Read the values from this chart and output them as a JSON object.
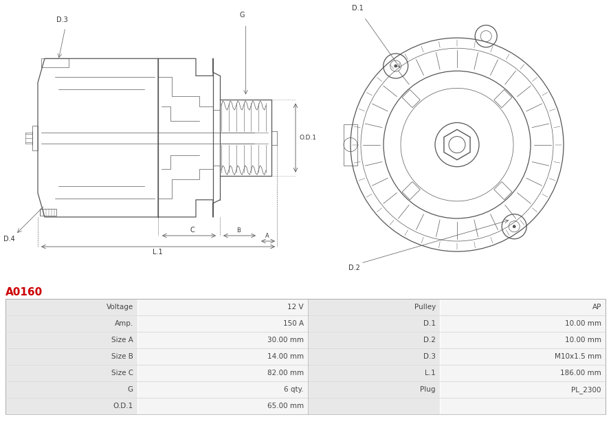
{
  "title": "A0160",
  "title_color": "#cc0000",
  "bg_color": "#ffffff",
  "table_rows": [
    [
      "Voltage",
      "12 V",
      "Pulley",
      "AP"
    ],
    [
      "Amp.",
      "150 A",
      "D.1",
      "10.00 mm"
    ],
    [
      "Size A",
      "30.00 mm",
      "D.2",
      "10.00 mm"
    ],
    [
      "Size B",
      "14.00 mm",
      "D.3",
      "M10x1.5 mm"
    ],
    [
      "Size C",
      "82.00 mm",
      "L.1",
      "186.00 mm"
    ],
    [
      "G",
      "6 qty.",
      "Plug",
      "PL_2300"
    ],
    [
      "O.D.1",
      "65.00 mm",
      "",
      ""
    ]
  ],
  "row_bg_label": "#e8e8e8",
  "row_bg_value": "#f5f5f5",
  "text_color": "#444444",
  "border_color": "#cccccc"
}
